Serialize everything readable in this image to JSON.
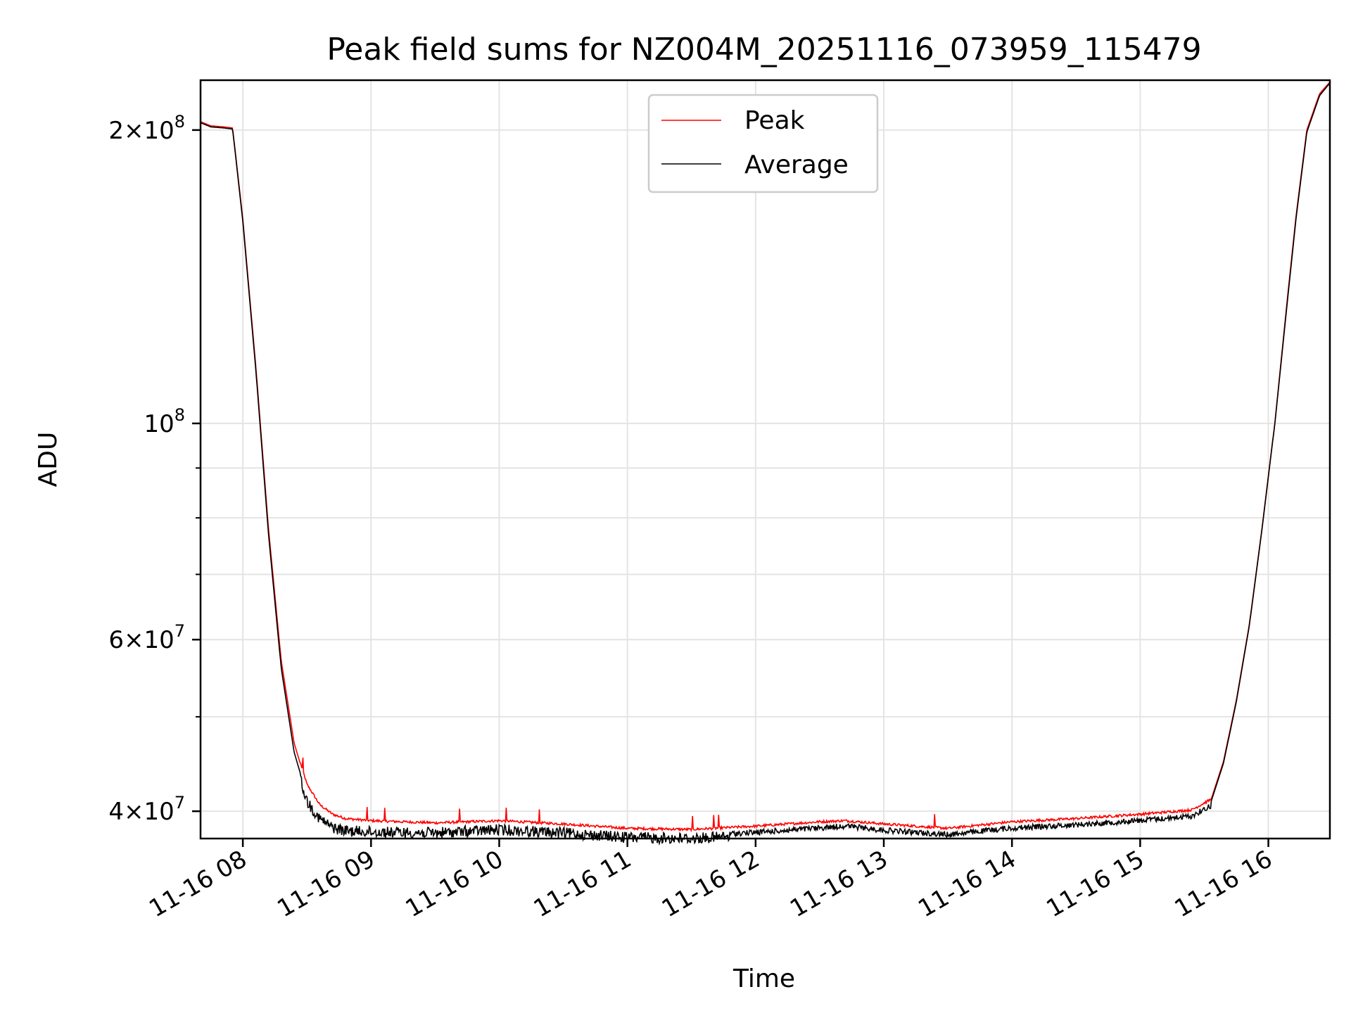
{
  "chart_data": {
    "type": "line",
    "title": "Peak field sums for NZ004M_20251116_073959_115479",
    "xlabel": "Time",
    "ylabel": "ADU",
    "yscale": "log",
    "ylim": [
      37500000,
      225000000
    ],
    "xlim": [
      "11-16 07:40",
      "11-16 16:29"
    ],
    "grid": true,
    "legend_position": "upper-center",
    "x_ticks": [
      "11-16 08",
      "11-16 09",
      "11-16 10",
      "11-16 11",
      "11-16 12",
      "11-16 13",
      "11-16 14",
      "11-16 15",
      "11-16 16"
    ],
    "x_tick_hours": [
      8,
      9,
      10,
      11,
      12,
      13,
      14,
      15,
      16
    ],
    "y_major_ticks": [
      {
        "value": 40000000,
        "label_base": "4×10",
        "label_exp": "7"
      },
      {
        "value": 60000000,
        "label_base": "6×10",
        "label_exp": "7"
      },
      {
        "value": 100000000,
        "label_base": "10",
        "label_exp": "8"
      },
      {
        "value": 200000000,
        "label_base": "2×10",
        "label_exp": "8"
      }
    ],
    "y_minor_ticks": [
      50000000,
      70000000,
      80000000,
      90000000
    ],
    "x_hours": [
      7.67,
      7.75,
      7.85,
      7.92,
      8.0,
      8.1,
      8.2,
      8.3,
      8.4,
      8.5,
      8.6,
      8.7,
      8.8,
      9.0,
      9.5,
      10.0,
      10.5,
      11.0,
      11.5,
      12.0,
      12.5,
      12.7,
      13.0,
      13.5,
      14.0,
      14.5,
      15.0,
      15.4,
      15.55,
      15.65,
      15.75,
      15.85,
      15.95,
      16.05,
      16.15,
      16.22,
      16.3,
      16.4,
      16.48
    ],
    "series": [
      {
        "name": "Peak",
        "color": "#ff0000",
        "values": [
          204000000,
          202000000,
          201500000,
          201000000,
          162000000,
          115000000,
          78000000,
          57000000,
          47000000,
          42500000,
          40500000,
          39600000,
          39200000,
          39000000,
          38800000,
          39000000,
          38700000,
          38300000,
          38200000,
          38500000,
          38900000,
          39000000,
          38700000,
          38300000,
          38900000,
          39200000,
          39600000,
          40000000,
          41000000,
          45000000,
          52000000,
          62000000,
          78000000,
          100000000,
          135000000,
          165000000,
          200000000,
          218000000,
          224000000
        ]
      },
      {
        "name": "Average",
        "color": "#000000",
        "values": [
          203500000,
          201500000,
          201000000,
          200500000,
          161000000,
          114000000,
          77000000,
          56000000,
          46000000,
          41500000,
          39800000,
          39000000,
          38700000,
          38600000,
          38500000,
          38800000,
          38500000,
          38100000,
          38000000,
          38300000,
          38700000,
          38900000,
          38500000,
          38100000,
          38700000,
          39000000,
          39400000,
          39800000,
          40800000,
          44800000,
          51800000,
          61800000,
          77800000,
          99800000,
          134000000,
          164000000,
          199000000,
          217000000,
          223500000
        ]
      }
    ]
  }
}
